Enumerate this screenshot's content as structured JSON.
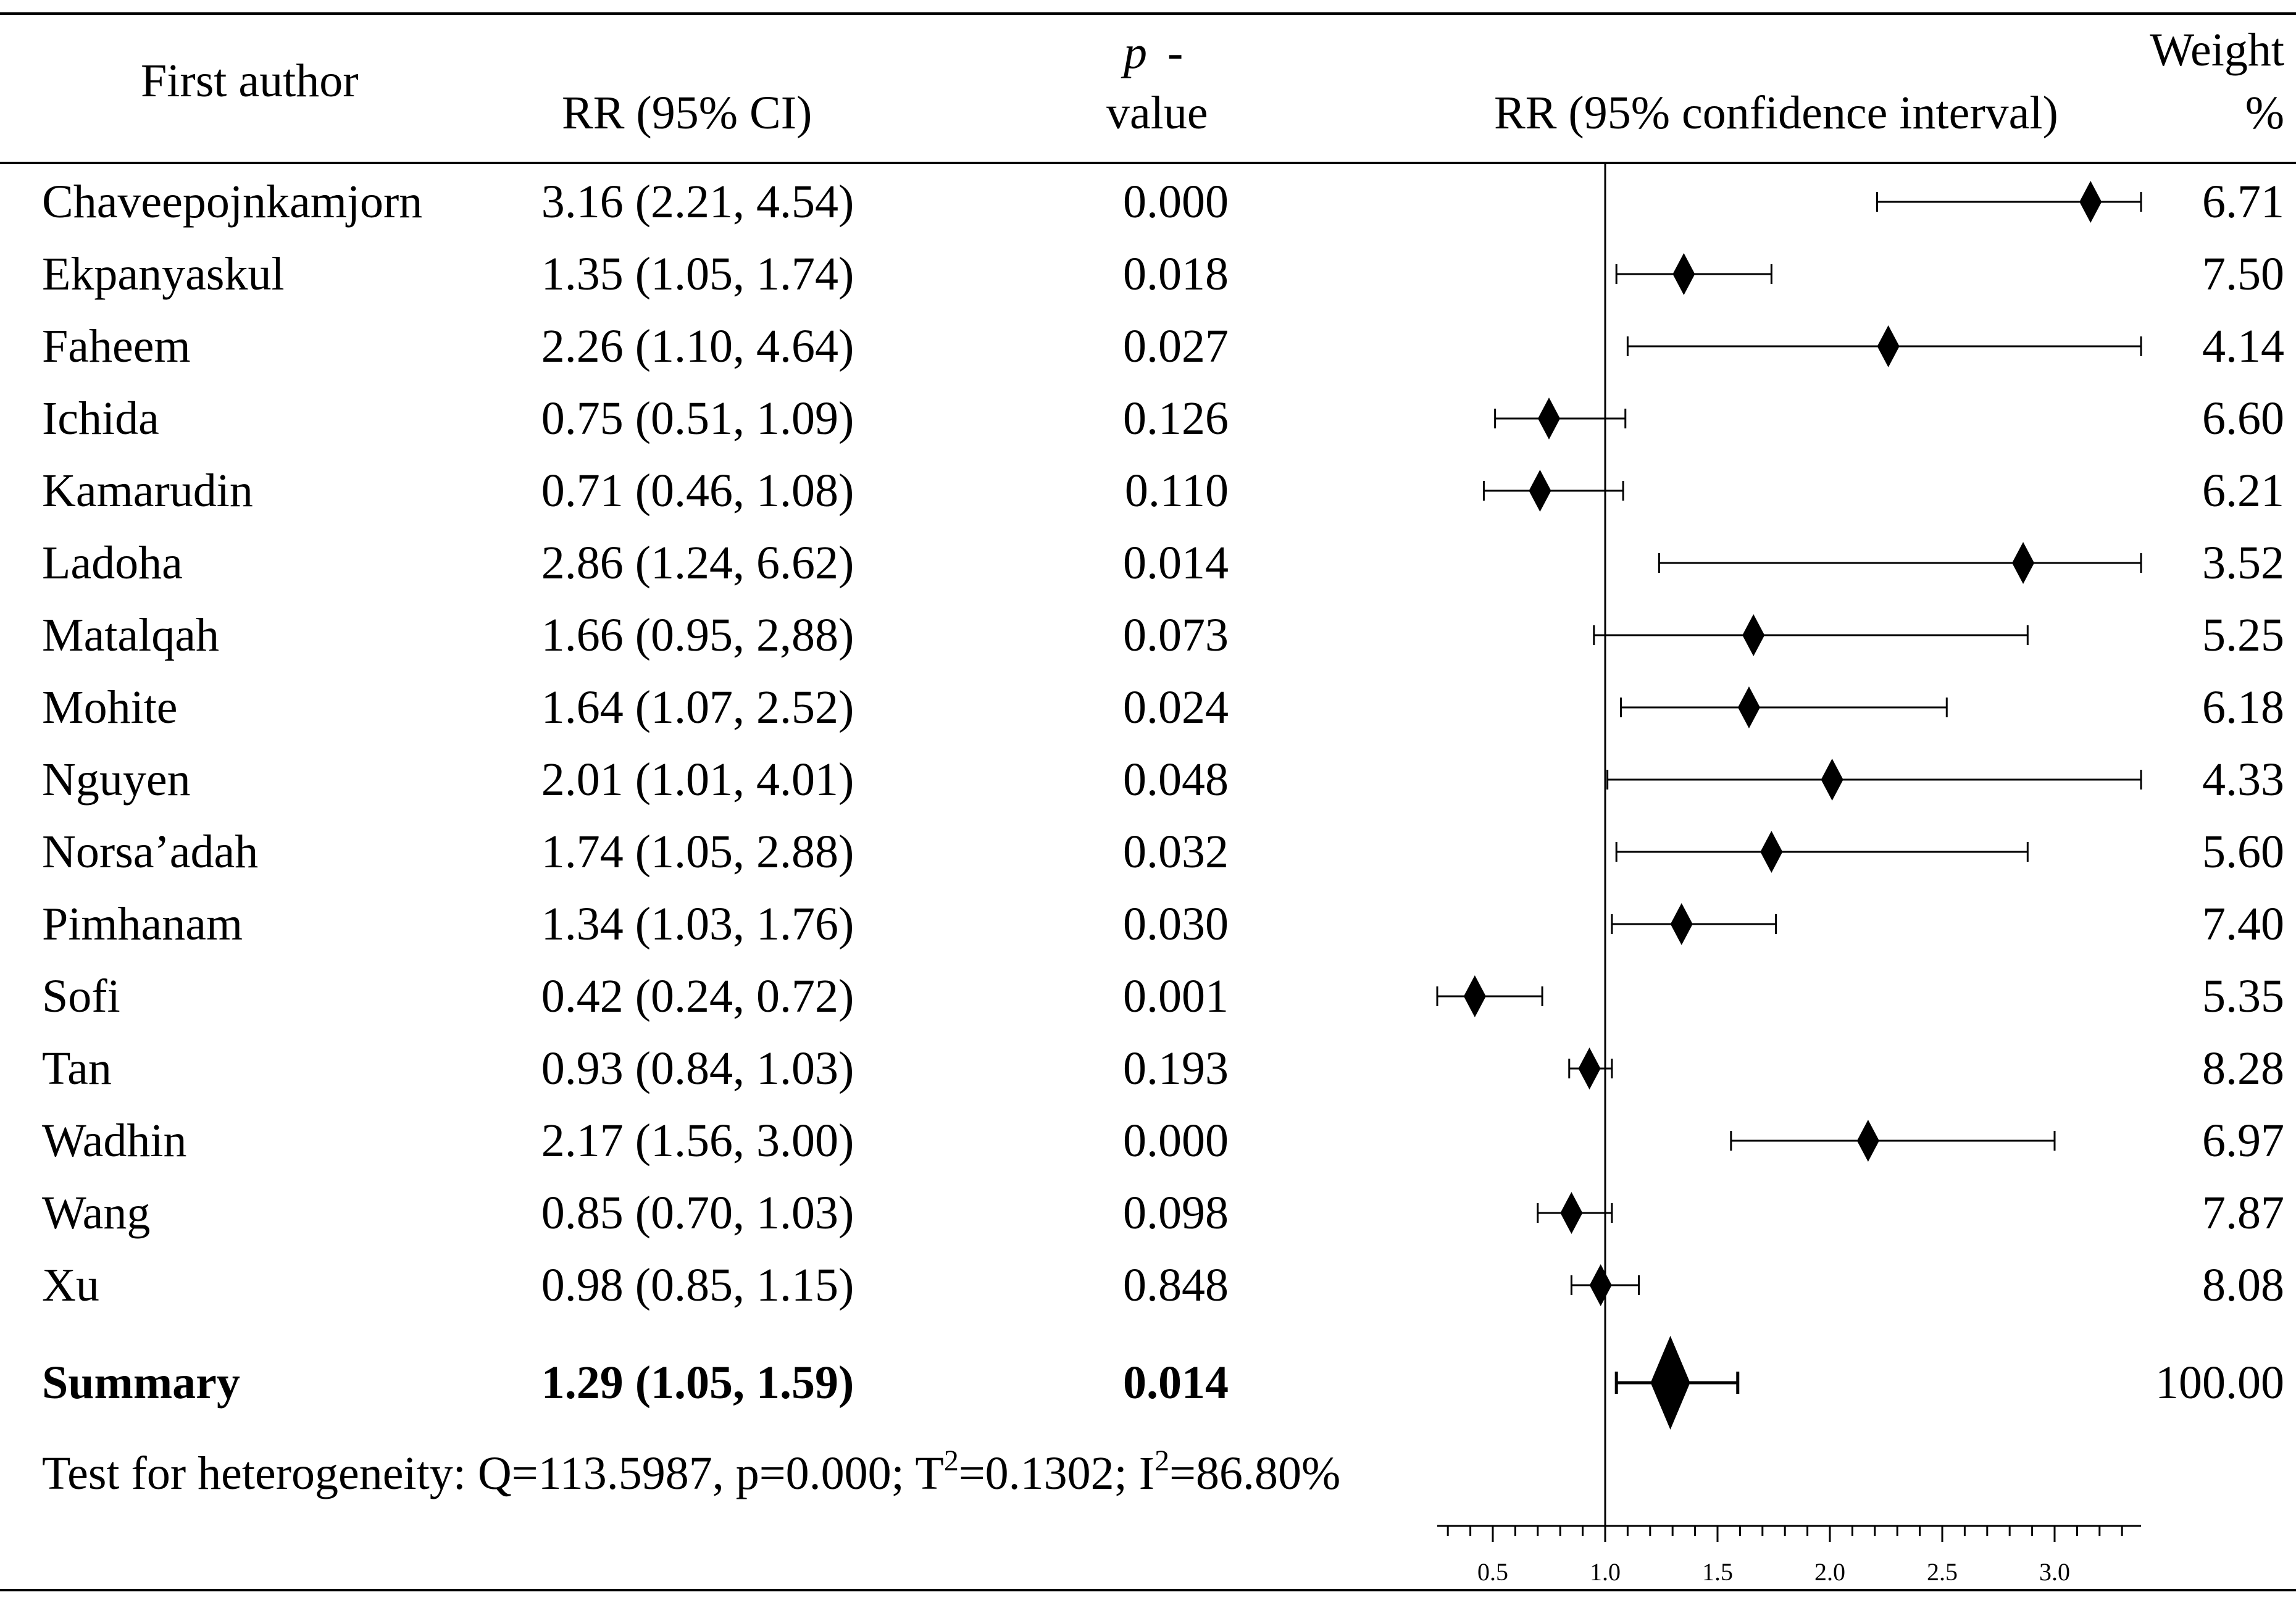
{
  "chart_data": {
    "type": "forest",
    "headers": {
      "author": "First author",
      "rr": "RR (95% CI)",
      "pvalue_italic": "p",
      "pvalue_dash": "-",
      "pvalue_second": "value",
      "plot": "RR (95% confidence interval)",
      "weight_line1": "Weight",
      "weight_line2": "%"
    },
    "studies": [
      {
        "author": "Chaveepojnkamjorn",
        "rr_text": "3.16 (2.21, 4.54)",
        "p": "0.000",
        "weight": "6.71",
        "rr": 3.16,
        "lo": 2.21,
        "hi": 4.54
      },
      {
        "author": "Ekpanyaskul",
        "rr_text": "1.35 (1.05, 1.74)",
        "p": "0.018",
        "weight": "7.50",
        "rr": 1.35,
        "lo": 1.05,
        "hi": 1.74
      },
      {
        "author": "Faheem",
        "rr_text": "2.26 (1.10, 4.64)",
        "p": "0.027",
        "weight": "4.14",
        "rr": 2.26,
        "lo": 1.1,
        "hi": 4.64
      },
      {
        "author": "Ichida",
        "rr_text": "0.75 (0.51, 1.09)",
        "p": "0.126",
        "weight": "6.60",
        "rr": 0.75,
        "lo": 0.51,
        "hi": 1.09
      },
      {
        "author": "Kamarudin",
        "rr_text": "0.71 (0.46, 1.08)",
        "p": "0.110",
        "weight": "6.21",
        "rr": 0.71,
        "lo": 0.46,
        "hi": 1.08
      },
      {
        "author": "Ladoha",
        "rr_text": "2.86 (1.24, 6.62)",
        "p": "0.014",
        "weight": "3.52",
        "rr": 2.86,
        "lo": 1.24,
        "hi": 6.62
      },
      {
        "author": "Matalqah",
        "rr_text": "1.66 (0.95, 2,88)",
        "p": "0.073",
        "weight": "5.25",
        "rr": 1.66,
        "lo": 0.95,
        "hi": 2.88
      },
      {
        "author": "Mohite",
        "rr_text": "1.64 (1.07, 2.52)",
        "p": "0.024",
        "weight": "6.18",
        "rr": 1.64,
        "lo": 1.07,
        "hi": 2.52
      },
      {
        "author": "Nguyen",
        "rr_text": "2.01 (1.01, 4.01)",
        "p": "0.048",
        "weight": "4.33",
        "rr": 2.01,
        "lo": 1.01,
        "hi": 4.01
      },
      {
        "author": "Norsa’adah",
        "rr_text": "1.74 (1.05, 2.88)",
        "p": "0.032",
        "weight": "5.60",
        "rr": 1.74,
        "lo": 1.05,
        "hi": 2.88
      },
      {
        "author": "Pimhanam",
        "rr_text": "1.34 (1.03, 1.76)",
        "p": "0.030",
        "weight": "7.40",
        "rr": 1.34,
        "lo": 1.03,
        "hi": 1.76
      },
      {
        "author": "Sofi",
        "rr_text": "0.42 (0.24, 0.72)",
        "p": "0.001",
        "weight": "5.35",
        "rr": 0.42,
        "lo": 0.24,
        "hi": 0.72
      },
      {
        "author": "Tan",
        "rr_text": "0.93 (0.84, 1.03)",
        "p": "0.193",
        "weight": "8.28",
        "rr": 0.93,
        "lo": 0.84,
        "hi": 1.03
      },
      {
        "author": "Wadhin",
        "rr_text": "2.17 (1.56, 3.00)",
        "p": "0.000",
        "weight": "6.97",
        "rr": 2.17,
        "lo": 1.56,
        "hi": 3.0
      },
      {
        "author": "Wang",
        "rr_text": "0.85 (0.70, 1.03)",
        "p": "0.098",
        "weight": "7.87",
        "rr": 0.85,
        "lo": 0.7,
        "hi": 1.03
      },
      {
        "author": "Xu",
        "rr_text": "0.98 (0.85, 1.15)",
        "p": "0.848",
        "weight": "8.08",
        "rr": 0.98,
        "lo": 0.85,
        "hi": 1.15
      }
    ],
    "summary": {
      "author": "Summary",
      "rr_text": "1.29 (1.05, 1.59)",
      "p": "0.014",
      "weight": "100.00",
      "rr": 1.29,
      "lo": 1.05,
      "hi": 1.59
    },
    "heterogeneity": {
      "prefix": "Test for heterogeneity: Q=113.5987, p=0.000; T",
      "t_sup": "2",
      "middle": "=0.1302; I",
      "i_sup": "2",
      "suffix": "=86.80%"
    },
    "x_axis": {
      "range": [
        0.2,
        3.5
      ],
      "reference_line": 1.0,
      "tick_labels": [
        "0.5",
        "1.0",
        "1.5",
        "2.0",
        "2.5",
        "3.0"
      ],
      "tick_values": [
        0.5,
        1.0,
        1.5,
        2.0,
        2.5,
        3.0
      ],
      "minor_step": 0.1
    }
  }
}
